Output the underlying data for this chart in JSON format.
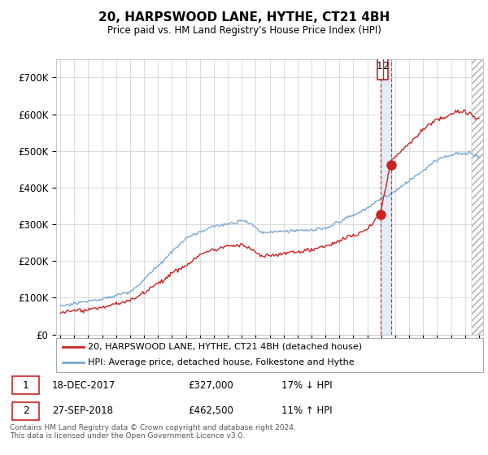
{
  "title": "20, HARPSWOOD LANE, HYTHE, CT21 4BH",
  "subtitle": "Price paid vs. HM Land Registry's House Price Index (HPI)",
  "legend_line1": "20, HARPSWOOD LANE, HYTHE, CT21 4BH (detached house)",
  "legend_line2": "HPI: Average price, detached house, Folkestone and Hythe",
  "transaction1_date": "18-DEC-2017",
  "transaction1_price": "£327,000",
  "transaction1_hpi": "17% ↓ HPI",
  "transaction2_date": "27-SEP-2018",
  "transaction2_price": "£462,500",
  "transaction2_hpi": "11% ↑ HPI",
  "footer": "Contains HM Land Registry data © Crown copyright and database right 2024.\nThis data is licensed under the Open Government Licence v3.0.",
  "ylim": [
    0,
    750000
  ],
  "yticks": [
    0,
    100000,
    200000,
    300000,
    400000,
    500000,
    600000,
    700000
  ],
  "ytick_labels": [
    "£0",
    "£100K",
    "£200K",
    "£300K",
    "£400K",
    "£500K",
    "£600K",
    "£700K"
  ],
  "background_color": "#ffffff",
  "grid_color": "#cccccc",
  "hpi_line_color": "#7aa8d2",
  "price_line_color": "#cc2222",
  "vline_color": "#cc2222",
  "vband_color": "#dce8f5",
  "transaction1_x": 2017.96,
  "transaction2_x": 2018.73,
  "transaction1_y": 327000,
  "transaction2_y": 462500,
  "vline_x1": 2017.96,
  "vline_x2": 2018.73,
  "hatch_start": 2024.5,
  "xmin": 1994.7,
  "xmax": 2025.3
}
